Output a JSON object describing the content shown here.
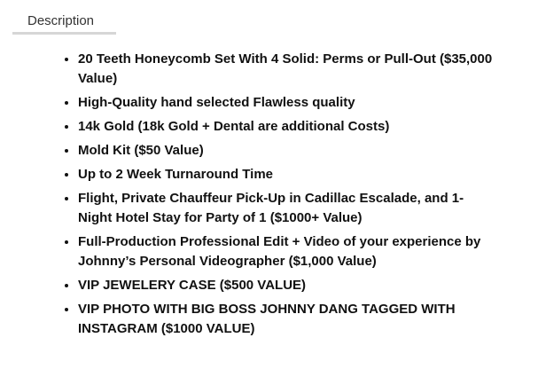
{
  "tab": {
    "label": "Description"
  },
  "items": [
    "20 Teeth Honeycomb Set With 4 Solid: Perms or Pull-Out ($35,000 Value)",
    "High-Quality hand selected Flawless quality",
    "14k Gold (18k Gold + Dental are additional Costs)",
    "Mold Kit ($50 Value)",
    "Up to 2 Week Turnaround Time",
    "Flight, Private Chauffeur Pick-Up in Cadillac Escalade, and 1- Night Hotel Stay for Party of 1 ($1000+ Value)",
    "Full-Production Professional Edit + Video of your experience by Johnny’s Personal Videographer ($1,000 Value)",
    "VIP JEWELERY CASE ($500 VALUE)",
    "VIP PHOTO WITH BIG BOSS JOHNNY DANG TAGGED WITH  INSTAGRAM ($1000 VALUE)"
  ]
}
